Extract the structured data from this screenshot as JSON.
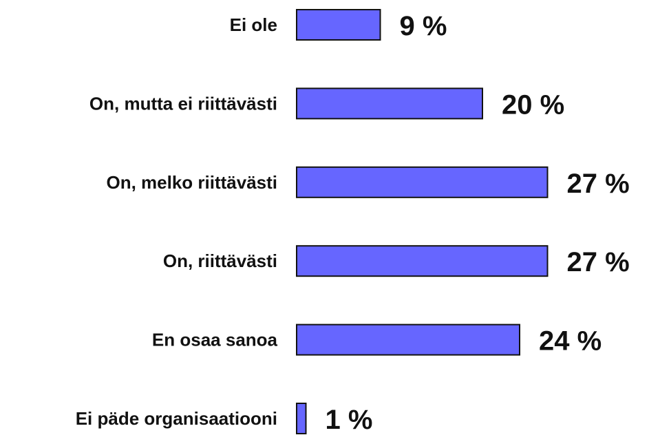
{
  "chart_data": {
    "type": "bar",
    "orientation": "horizontal",
    "categories": [
      "Ei ole",
      "On, mutta ei riittävästi",
      "On, melko riittävästi",
      "On, riittävästi",
      "En osaa sanoa",
      "Ei päde organisaatiooni"
    ],
    "values": [
      9,
      20,
      27,
      27,
      24,
      1
    ],
    "value_labels": [
      "9 %",
      "20 %",
      "27 %",
      "27 %",
      "24 %",
      "1 %"
    ],
    "color": "#6666ff"
  }
}
